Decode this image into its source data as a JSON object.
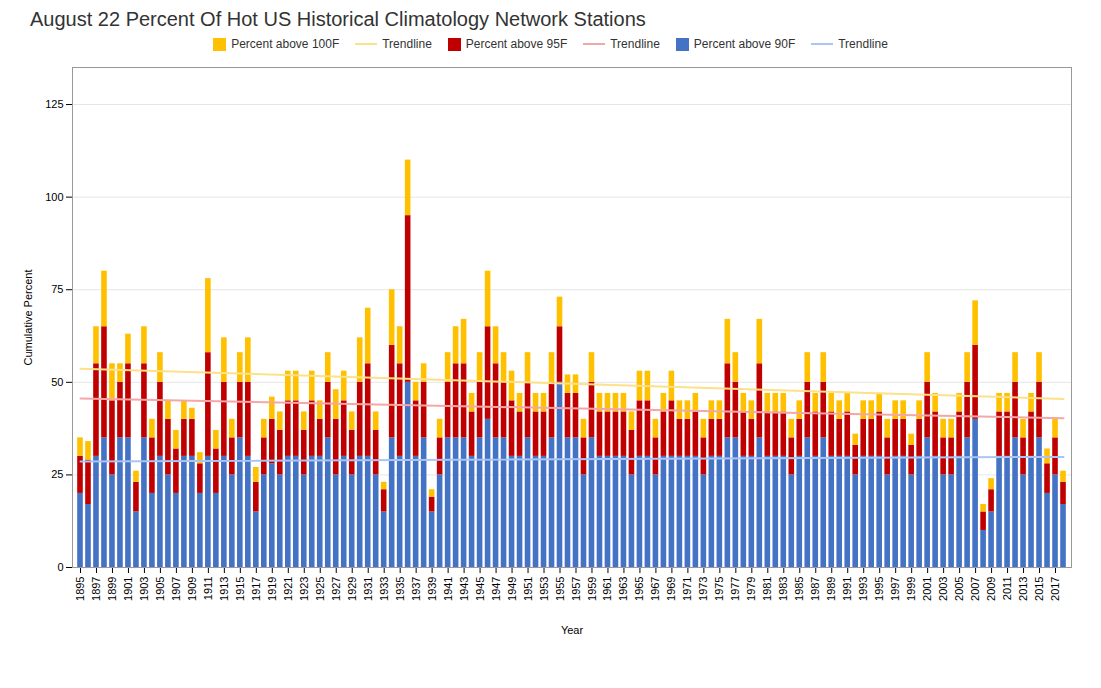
{
  "chart_data": {
    "type": "bar",
    "title": "August 22 Percent Of Hot US Historical Climatology Network Stations",
    "xlabel": "Year",
    "ylabel": "Cumulative Percent",
    "stacked": true,
    "grid": true,
    "legend": "top",
    "x": [
      1895,
      1896,
      1897,
      1898,
      1899,
      1900,
      1901,
      1902,
      1903,
      1904,
      1905,
      1906,
      1907,
      1908,
      1909,
      1910,
      1911,
      1912,
      1913,
      1914,
      1915,
      1916,
      1917,
      1918,
      1919,
      1920,
      1921,
      1922,
      1923,
      1924,
      1925,
      1926,
      1927,
      1928,
      1929,
      1930,
      1931,
      1932,
      1933,
      1934,
      1935,
      1936,
      1937,
      1938,
      1939,
      1940,
      1941,
      1942,
      1943,
      1944,
      1945,
      1946,
      1947,
      1948,
      1949,
      1950,
      1951,
      1952,
      1953,
      1954,
      1955,
      1956,
      1957,
      1958,
      1959,
      1960,
      1961,
      1962,
      1963,
      1964,
      1965,
      1966,
      1967,
      1968,
      1969,
      1970,
      1971,
      1972,
      1973,
      1974,
      1975,
      1976,
      1977,
      1978,
      1979,
      1980,
      1981,
      1982,
      1983,
      1984,
      1985,
      1986,
      1987,
      1988,
      1989,
      1990,
      1991,
      1992,
      1993,
      1994,
      1995,
      1996,
      1997,
      1998,
      1999,
      2000,
      2001,
      2002,
      2003,
      2004,
      2005,
      2006,
      2007,
      2008,
      2009,
      2010,
      2011,
      2012,
      2013,
      2014,
      2015,
      2016,
      2017,
      2018
    ],
    "series": [
      {
        "name": "Percent above 100F",
        "type": "bar",
        "color": "#ffc000",
        "values": [
          5,
          5,
          10,
          15,
          10,
          5,
          8,
          3,
          10,
          5,
          8,
          5,
          5,
          5,
          3,
          3,
          20,
          5,
          12,
          5,
          8,
          12,
          4,
          5,
          6,
          5,
          8,
          8,
          5,
          8,
          5,
          8,
          8,
          8,
          5,
          12,
          15,
          5,
          2,
          15,
          10,
          15,
          5,
          5,
          2,
          5,
          8,
          10,
          12,
          5,
          8,
          15,
          10,
          8,
          8,
          5,
          8,
          5,
          5,
          8,
          8,
          5,
          5,
          5,
          8,
          5,
          5,
          5,
          5,
          5,
          8,
          8,
          5,
          5,
          8,
          5,
          5,
          5,
          5,
          5,
          5,
          12,
          8,
          5,
          5,
          12,
          5,
          5,
          5,
          5,
          5,
          8,
          5,
          8,
          5,
          5,
          5,
          3,
          5,
          5,
          5,
          5,
          5,
          5,
          3,
          5,
          8,
          5,
          5,
          5,
          5,
          8,
          12,
          2,
          3,
          5,
          5,
          8,
          5,
          5,
          8,
          4,
          5,
          3
        ]
      },
      {
        "name": "Trendline",
        "type": "line",
        "color": "#fce08a",
        "x": [
          1895,
          2018
        ],
        "values": [
          53.6782,
          45.4992
        ]
      },
      {
        "name": "Percent above 95F",
        "type": "bar",
        "color": "#c00000",
        "values": [
          10,
          12,
          25,
          30,
          20,
          15,
          20,
          8,
          20,
          15,
          20,
          15,
          12,
          10,
          10,
          8,
          28,
          12,
          20,
          10,
          15,
          20,
          8,
          10,
          12,
          12,
          15,
          15,
          12,
          15,
          10,
          15,
          15,
          15,
          12,
          20,
          25,
          12,
          6,
          25,
          25,
          45,
          15,
          15,
          4,
          10,
          15,
          20,
          20,
          12,
          15,
          25,
          20,
          15,
          15,
          12,
          15,
          12,
          12,
          15,
          15,
          12,
          12,
          10,
          15,
          12,
          12,
          12,
          12,
          12,
          15,
          15,
          10,
          12,
          15,
          10,
          10,
          12,
          10,
          10,
          10,
          20,
          15,
          12,
          10,
          20,
          12,
          12,
          12,
          10,
          10,
          15,
          12,
          15,
          12,
          10,
          12,
          8,
          10,
          10,
          12,
          10,
          10,
          10,
          8,
          10,
          15,
          12,
          10,
          10,
          12,
          15,
          20,
          5,
          6,
          12,
          12,
          15,
          10,
          12,
          15,
          8,
          10,
          6
        ]
      },
      {
        "name": "Trendline",
        "type": "line",
        "color": "#f4a7a7",
        "x": [
          1895,
          2018
        ],
        "values": [
          45.6112,
          40.3243
        ]
      },
      {
        "name": "Percent above 90F",
        "type": "bar",
        "color": "#4472c4",
        "values": [
          20,
          17,
          30,
          35,
          25,
          35,
          35,
          15,
          35,
          20,
          30,
          25,
          20,
          30,
          30,
          20,
          30,
          20,
          30,
          25,
          35,
          30,
          15,
          25,
          28,
          25,
          30,
          30,
          25,
          30,
          30,
          35,
          25,
          30,
          25,
          30,
          30,
          25,
          15,
          35,
          30,
          50,
          30,
          35,
          15,
          25,
          35,
          35,
          35,
          30,
          35,
          40,
          35,
          35,
          30,
          30,
          35,
          30,
          30,
          35,
          50,
          35,
          35,
          25,
          35,
          30,
          30,
          30,
          30,
          25,
          30,
          30,
          25,
          30,
          30,
          30,
          30,
          30,
          25,
          30,
          30,
          35,
          35,
          30,
          30,
          35,
          30,
          30,
          30,
          25,
          30,
          35,
          30,
          35,
          30,
          30,
          30,
          25,
          30,
          30,
          30,
          25,
          30,
          30,
          25,
          30,
          35,
          30,
          25,
          25,
          30,
          35,
          40,
          10,
          15,
          30,
          30,
          35,
          25,
          30,
          35,
          20,
          25,
          17
        ]
      },
      {
        "name": "Trendline",
        "type": "line",
        "color": "#a9c4f5",
        "x": [
          1895,
          2018
        ],
        "values": [
          28.6347,
          29.8653
        ]
      }
    ],
    "xlim": [
      1894,
      2019
    ],
    "xticks": [
      1895,
      1897,
      1899,
      1901,
      1903,
      1905,
      1907,
      1909,
      1911,
      1913,
      1915,
      1917,
      1919,
      1921,
      1923,
      1925,
      1927,
      1929,
      1931,
      1933,
      1935,
      1937,
      1939,
      1941,
      1943,
      1945,
      1947,
      1949,
      1951,
      1953,
      1955,
      1957,
      1959,
      1961,
      1963,
      1965,
      1967,
      1969,
      1971,
      1973,
      1975,
      1977,
      1979,
      1981,
      1983,
      1985,
      1987,
      1989,
      1991,
      1993,
      1995,
      1997,
      1999,
      2001,
      2003,
      2005,
      2007,
      2009,
      2011,
      2013,
      2015,
      2017
    ],
    "ylim": [
      0,
      135
    ],
    "yticks": [
      0,
      25,
      50,
      75,
      100,
      125
    ]
  }
}
